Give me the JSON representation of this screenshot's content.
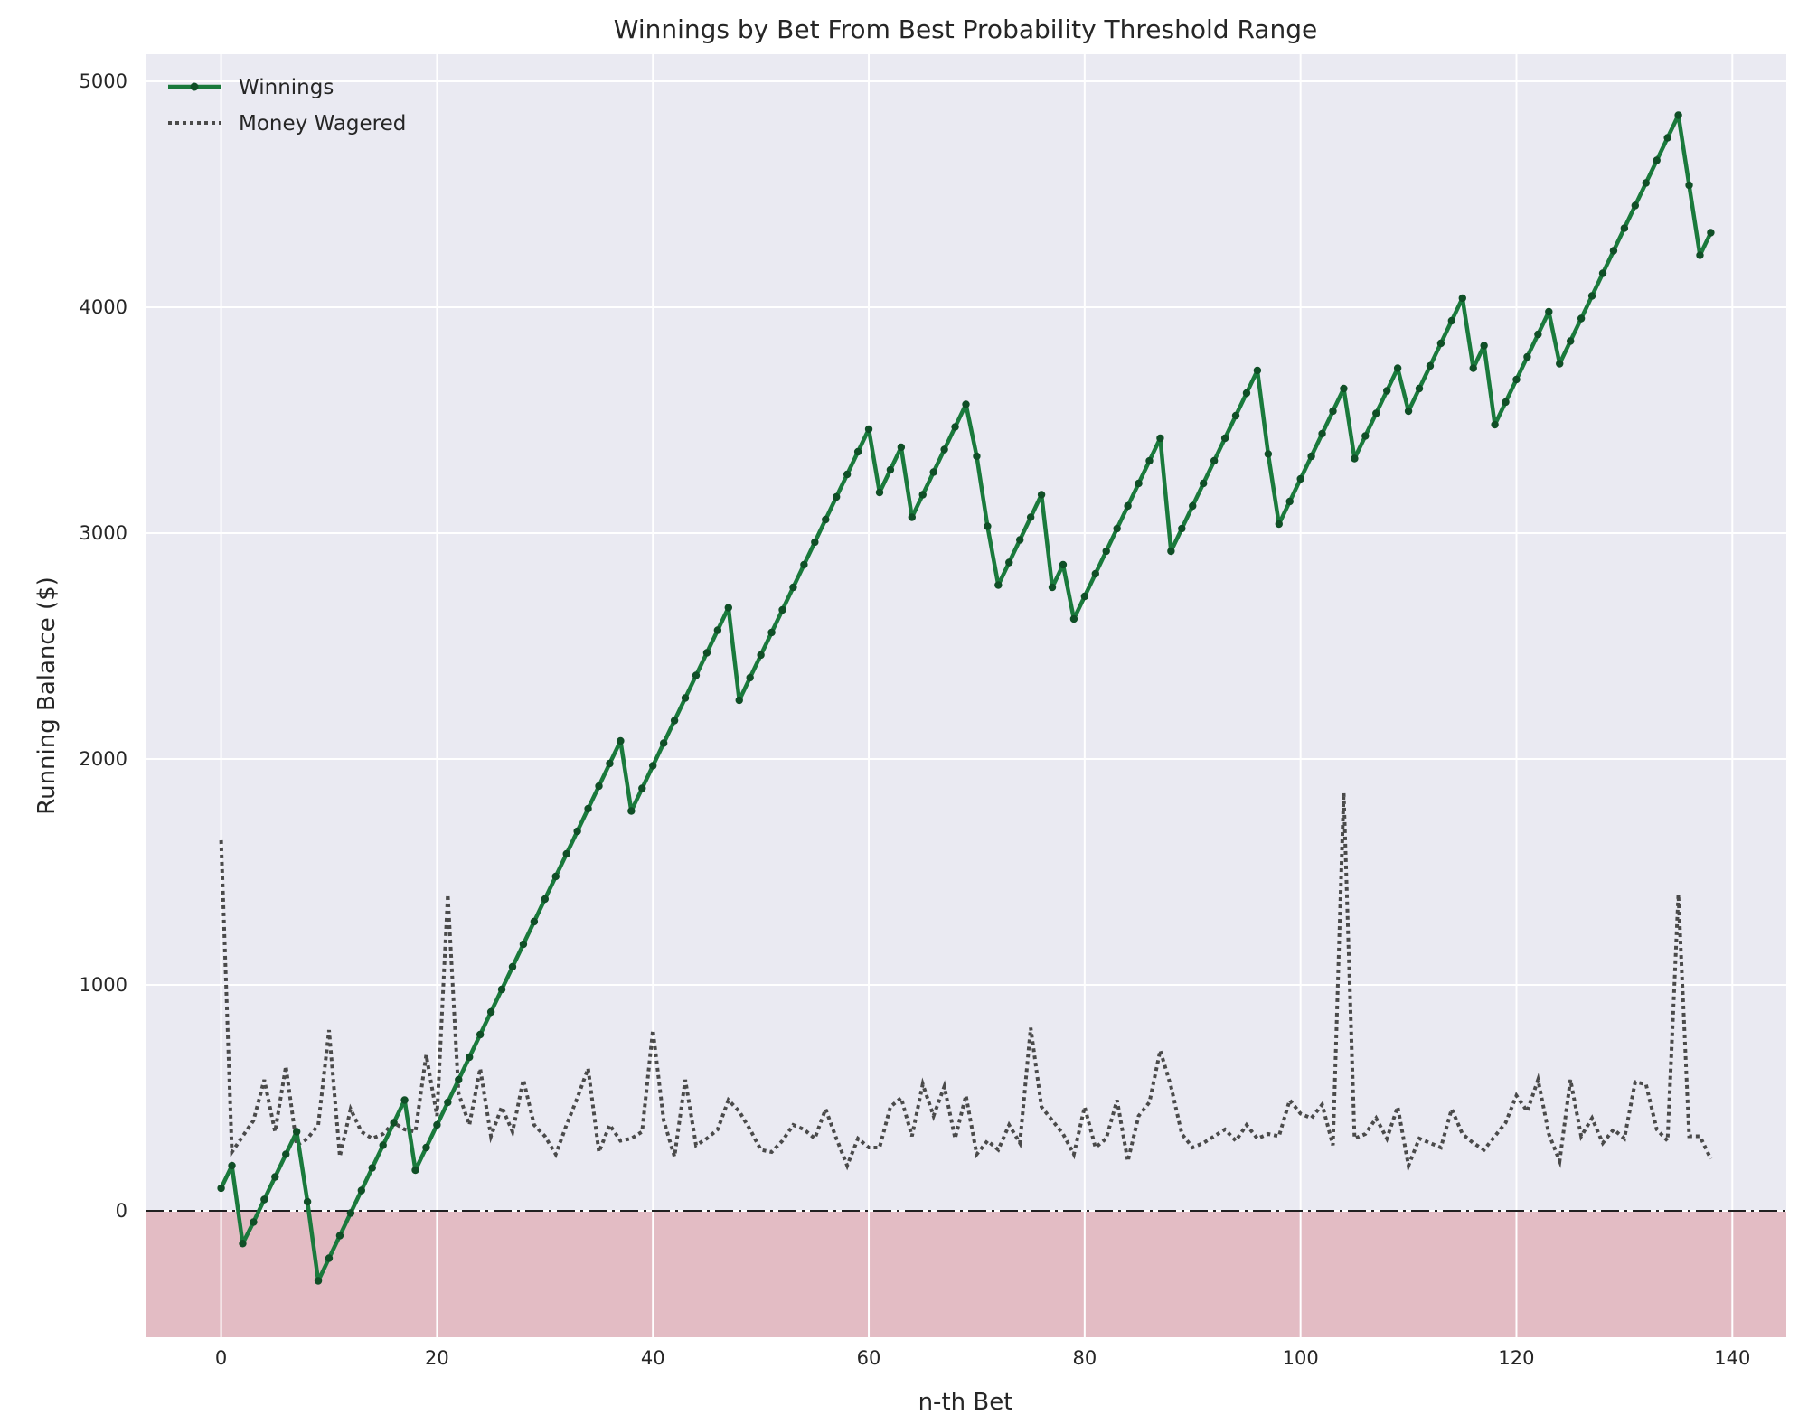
{
  "chart_data": {
    "type": "line",
    "title": "Winnings by Bet From Best Probability Threshold Range",
    "xlabel": "n-th Bet",
    "ylabel": "Running Balance ($)",
    "xlim": [
      -7,
      145
    ],
    "ylim": [
      -560,
      5120
    ],
    "xticks": [
      0,
      20,
      40,
      60,
      80,
      100,
      120,
      140
    ],
    "yticks": [
      0,
      1000,
      2000,
      3000,
      4000,
      5000
    ],
    "grid": true,
    "legend_position": "top-left",
    "zero_line": true,
    "negative_region_shaded": true,
    "colors": {
      "background": "#eaeaf2",
      "grid": "#ffffff",
      "winnings": "#1a7a3c",
      "winnings_marker": "#0f4f26",
      "wagered": "#4a4a4a",
      "negative_region": "#e3bcc4",
      "zero_line": "#000000"
    },
    "series": [
      {
        "name": "Winnings",
        "style": "solid-with-markers",
        "values": [
          100,
          200,
          -145,
          -50,
          50,
          150,
          250,
          350,
          40,
          -310,
          -210,
          -110,
          -10,
          90,
          190,
          290,
          390,
          490,
          180,
          280,
          380,
          480,
          580,
          680,
          780,
          880,
          980,
          1080,
          1180,
          1280,
          1380,
          1480,
          1580,
          1680,
          1780,
          1880,
          1980,
          2080,
          1770,
          1870,
          1970,
          2070,
          2170,
          2270,
          2370,
          2470,
          2570,
          2670,
          2260,
          2360,
          2460,
          2560,
          2660,
          2760,
          2860,
          2960,
          3060,
          3160,
          3260,
          3360,
          3460,
          3180,
          3280,
          3380,
          3070,
          3170,
          3270,
          3370,
          3470,
          3570,
          3340,
          3030,
          2770,
          2870,
          2970,
          3070,
          3170,
          2760,
          2860,
          2620,
          2720,
          2820,
          2920,
          3020,
          3120,
          3220,
          3320,
          3420,
          2920,
          3020,
          3120,
          3220,
          3320,
          3420,
          3520,
          3620,
          3720,
          3350,
          3040,
          3140,
          3240,
          3340,
          3440,
          3540,
          3640,
          3330,
          3430,
          3530,
          3630,
          3730,
          3540,
          3640,
          3740,
          3840,
          3940,
          4040,
          3730,
          3830,
          3480,
          3580,
          3680,
          3780,
          3880,
          3980,
          3750,
          3850,
          3950,
          4050,
          4150,
          4250,
          4350,
          4450,
          4550,
          4650,
          4750,
          4850,
          4540,
          4230,
          4330
        ]
      },
      {
        "name": "Money Wagered",
        "style": "dotted",
        "values": [
          1640,
          260,
          330,
          400,
          580,
          350,
          640,
          290,
          320,
          380,
          800,
          240,
          450,
          350,
          320,
          340,
          390,
          360,
          350,
          690,
          420,
          1400,
          520,
          380,
          630,
          330,
          460,
          350,
          580,
          380,
          330,
          250,
          380,
          500,
          630,
          260,
          380,
          310,
          320,
          350,
          800,
          400,
          240,
          580,
          290,
          320,
          360,
          490,
          440,
          360,
          270,
          260,
          310,
          380,
          360,
          320,
          450,
          320,
          200,
          320,
          280,
          280,
          460,
          500,
          330,
          560,
          420,
          550,
          320,
          510,
          250,
          310,
          270,
          380,
          300,
          810,
          460,
          400,
          340,
          250,
          460,
          280,
          320,
          490,
          220,
          420,
          480,
          710,
          550,
          340,
          280,
          300,
          330,
          360,
          310,
          380,
          320,
          340,
          330,
          490,
          430,
          410,
          470,
          290,
          1850,
          320,
          340,
          410,
          320,
          460,
          200,
          320,
          300,
          280,
          450,
          340,
          300,
          270,
          330,
          390,
          510,
          440,
          580,
          340,
          220,
          580,
          330,
          410,
          300,
          360,
          320,
          570,
          560,
          360,
          310,
          1400,
          330,
          330,
          230
        ]
      }
    ]
  }
}
